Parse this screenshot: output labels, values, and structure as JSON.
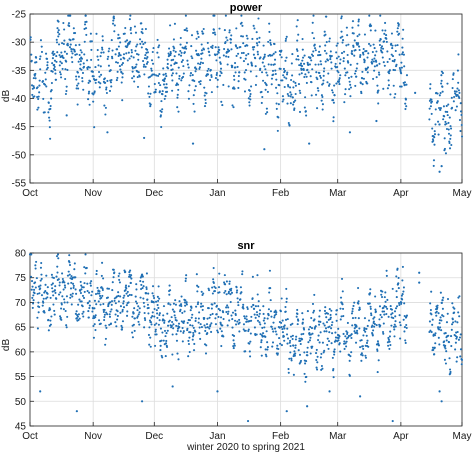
{
  "chart_data": [
    {
      "type": "scatter",
      "title": "power",
      "ylabel": "dB",
      "xlabel": "",
      "x_ticks": [
        "Oct",
        "Nov",
        "Dec",
        "Jan",
        "Feb",
        "Mar",
        "Apr",
        "May"
      ],
      "y_ticks": [
        -55,
        -50,
        -45,
        -40,
        -35,
        -30,
        -25
      ],
      "ylim": [
        -55,
        -25
      ],
      "xlim": [
        "2020-10-01",
        "2021-05-01"
      ],
      "grid": true,
      "marker_color": "#1f6fb4",
      "trend": [
        [
          "2020-10-01",
          -35
        ],
        [
          "2020-10-10",
          -38
        ],
        [
          "2020-10-16",
          -31
        ],
        [
          "2020-10-25",
          -33
        ],
        [
          "2020-11-05",
          -35
        ],
        [
          "2020-11-15",
          -31
        ],
        [
          "2020-11-25",
          -33
        ],
        [
          "2020-12-05",
          -37
        ],
        [
          "2020-12-12",
          -33
        ],
        [
          "2020-12-22",
          -35
        ],
        [
          "2021-01-01",
          -32
        ],
        [
          "2021-01-10",
          -33
        ],
        [
          "2021-01-20",
          -33
        ],
        [
          "2021-01-28",
          -35
        ],
        [
          "2021-02-05",
          -38
        ],
        [
          "2021-02-15",
          -34
        ],
        [
          "2021-02-25",
          -35
        ],
        [
          "2021-03-05",
          -34
        ],
        [
          "2021-03-15",
          -33
        ],
        [
          "2021-03-25",
          -32
        ],
        [
          "2021-04-01",
          -33
        ],
        [
          "2021-04-05",
          -36
        ],
        [
          "2021-04-15",
          -43
        ],
        [
          "2021-04-25",
          -42
        ],
        [
          "2021-05-01",
          -41
        ]
      ],
      "spread": 5,
      "gaps": [
        [
          "2021-04-04",
          "2021-04-15"
        ]
      ],
      "outliers": [
        [
          "2020-10-19",
          -43
        ],
        [
          "2020-11-08",
          -46
        ],
        [
          "2020-11-26",
          -47
        ],
        [
          "2020-12-20",
          -48
        ],
        [
          "2021-01-24",
          -49
        ],
        [
          "2021-02-15",
          -48
        ],
        [
          "2021-03-07",
          -46
        ],
        [
          "2021-03-20",
          -44
        ],
        [
          "2021-04-20",
          -53
        ],
        [
          "2021-04-21",
          -52
        ],
        [
          "2021-04-08",
          -39
        ]
      ]
    },
    {
      "type": "scatter",
      "title": "snr",
      "ylabel": "dB",
      "xlabel": "winter 2020 to spring 2021",
      "x_ticks": [
        "Oct",
        "Nov",
        "Dec",
        "Jan",
        "Feb",
        "Mar",
        "Apr",
        "May"
      ],
      "y_ticks": [
        45,
        50,
        55,
        60,
        65,
        70,
        75,
        80
      ],
      "ylim": [
        45,
        80
      ],
      "xlim": [
        "2020-10-01",
        "2021-05-01"
      ],
      "grid": true,
      "marker_color": "#1f6fb4",
      "trend": [
        [
          "2020-10-01",
          76
        ],
        [
          "2020-10-08",
          71
        ],
        [
          "2020-10-18",
          72
        ],
        [
          "2020-10-28",
          71
        ],
        [
          "2020-11-08",
          70
        ],
        [
          "2020-11-18",
          71
        ],
        [
          "2020-11-28",
          69
        ],
        [
          "2020-12-05",
          65
        ],
        [
          "2020-12-12",
          67
        ],
        [
          "2020-12-22",
          66
        ],
        [
          "2021-01-01",
          69
        ],
        [
          "2021-01-10",
          68
        ],
        [
          "2021-01-20",
          67
        ],
        [
          "2021-01-28",
          65
        ],
        [
          "2021-02-08",
          62
        ],
        [
          "2021-02-18",
          63
        ],
        [
          "2021-02-28",
          64
        ],
        [
          "2021-03-08",
          64
        ],
        [
          "2021-03-18",
          66
        ],
        [
          "2021-03-28",
          68
        ],
        [
          "2021-04-01",
          69
        ],
        [
          "2021-04-05",
          70
        ],
        [
          "2021-04-15",
          66
        ],
        [
          "2021-04-25",
          64
        ],
        [
          "2021-05-01",
          64
        ]
      ],
      "spread": 5,
      "gaps": [
        [
          "2021-04-04",
          "2021-04-15"
        ]
      ],
      "outliers": [
        [
          "2020-10-06",
          52
        ],
        [
          "2020-10-24",
          48
        ],
        [
          "2020-11-25",
          50
        ],
        [
          "2020-12-10",
          53
        ],
        [
          "2021-01-01",
          52
        ],
        [
          "2021-01-16",
          46
        ],
        [
          "2021-02-04",
          48
        ],
        [
          "2021-02-14",
          49
        ],
        [
          "2021-02-25",
          52
        ],
        [
          "2021-03-12",
          51
        ],
        [
          "2021-03-28",
          46
        ],
        [
          "2021-04-20",
          52
        ],
        [
          "2021-04-21",
          50
        ],
        [
          "2021-04-10",
          74
        ],
        [
          "2021-04-10",
          76
        ]
      ]
    }
  ]
}
